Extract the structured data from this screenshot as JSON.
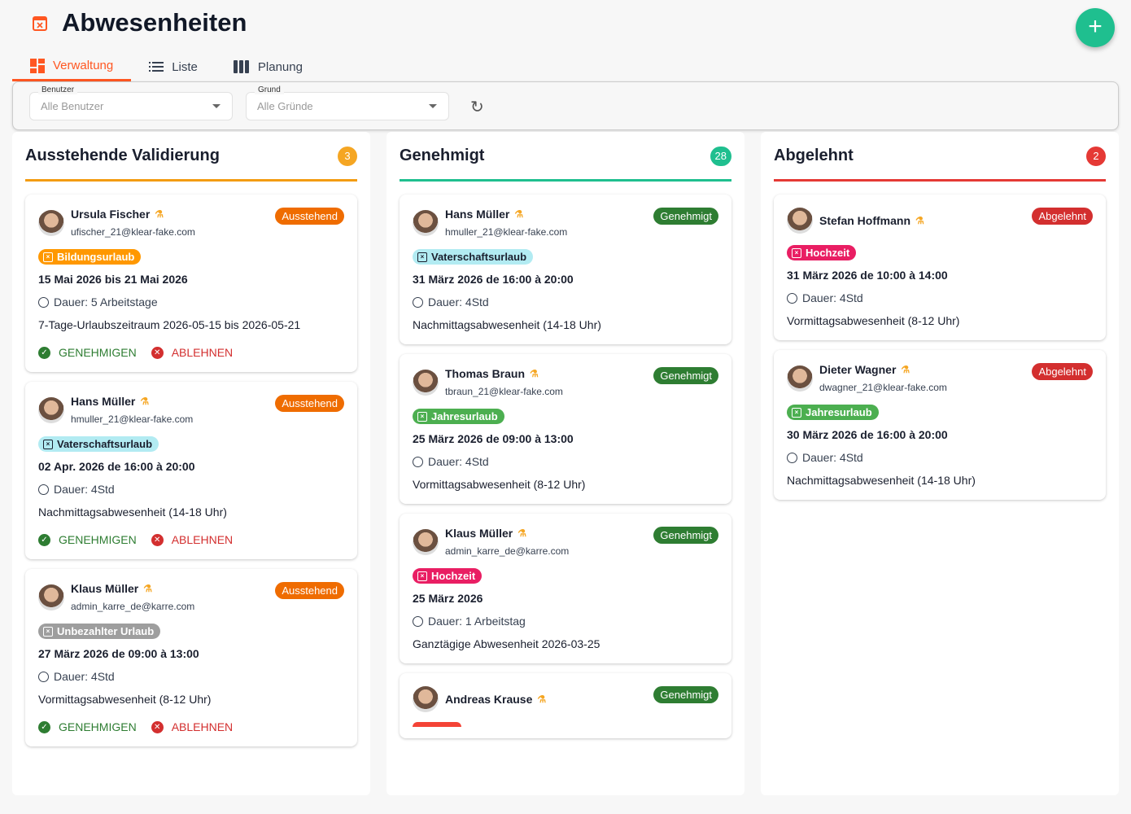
{
  "header": {
    "title": "Abwesenheiten",
    "icon": "calendar-x-icon",
    "add_button": "+"
  },
  "tabs": [
    {
      "label": "Verwaltung",
      "icon": "dashboard-icon",
      "active": true
    },
    {
      "label": "Liste",
      "icon": "list-icon"
    },
    {
      "label": "Planung",
      "icon": "columns-icon"
    }
  ],
  "filters": {
    "user_label": "Benutzer",
    "user_value": "Alle Benutzer",
    "reason_label": "Grund",
    "reason_value": "Alle Gründe",
    "refresh": "↻"
  },
  "actions": {
    "approve": "GENEHMIGEN",
    "reject": "ABLEHNEN"
  },
  "colors": {
    "pending": "#f59e0b",
    "approved": "#1fbf8f",
    "rejected": "#e53935"
  },
  "columns": [
    {
      "title": "Ausstehende Validierung",
      "count": "3",
      "color": "#f39c12",
      "count_color": "#f5a623",
      "status_color": "#ef6c00",
      "show_actions": true,
      "cards": [
        {
          "name": "Ursula Fischer",
          "email": "ufischer_21@klear-fake.com",
          "status": "Ausstehend",
          "category": "Bildungsurlaub",
          "cat_bg": "#ff9800",
          "cat_fg": "#fff",
          "date": "15 Mai 2026 bis 21 Mai 2026",
          "duration": "Dauer: 5 Arbeitstage",
          "description": "7-Tage-Urlaubszeitraum 2026-05-15 bis 2026-05-21"
        },
        {
          "name": "Hans Müller",
          "email": "hmuller_21@klear-fake.com",
          "status": "Ausstehend",
          "category": "Vaterschaftsurlaub",
          "cat_bg": "#b2ebf2",
          "cat_fg": "#1a1f2e",
          "date": "02 Apr. 2026 de 16:00 à 20:00",
          "duration": "Dauer: 4Std",
          "description": "Nachmittagsabwesenheit (14-18 Uhr)"
        },
        {
          "name": "Klaus Müller",
          "email": "admin_karre_de@karre.com",
          "status": "Ausstehend",
          "category": "Unbezahlter Urlaub",
          "cat_bg": "#9e9e9e",
          "cat_fg": "#fff",
          "date": "27 März 2026 de 09:00 à 13:00",
          "duration": "Dauer: 4Std",
          "description": "Vormittagsabwesenheit (8-12 Uhr)"
        }
      ]
    },
    {
      "title": "Genehmigt",
      "count": "28",
      "color": "#1fbf8f",
      "count_color": "#1fbf8f",
      "status_color": "#2e7d32",
      "show_actions": false,
      "cards": [
        {
          "name": "Hans Müller",
          "email": "hmuller_21@klear-fake.com",
          "status": "Genehmigt",
          "category": "Vaterschaftsurlaub",
          "cat_bg": "#b2ebf2",
          "cat_fg": "#1a1f2e",
          "date": "31 März 2026 de 16:00 à 20:00",
          "duration": "Dauer: 4Std",
          "description": "Nachmittagsabwesenheit (14-18 Uhr)"
        },
        {
          "name": "Thomas Braun",
          "email": "tbraun_21@klear-fake.com",
          "status": "Genehmigt",
          "category": "Jahresurlaub",
          "cat_bg": "#4caf50",
          "cat_fg": "#fff",
          "date": "25 März 2026 de 09:00 à 13:00",
          "duration": "Dauer: 4Std",
          "description": "Vormittagsabwesenheit (8-12 Uhr)"
        },
        {
          "name": "Klaus Müller",
          "email": "admin_karre_de@karre.com",
          "status": "Genehmigt",
          "category": "Hochzeit",
          "cat_bg": "#e91e63",
          "cat_fg": "#fff",
          "date": "25 März 2026",
          "duration": "Dauer: 1 Arbeitstag",
          "description": "Ganztägige Abwesenheit 2026-03-25"
        },
        {
          "name": "Andreas Krause",
          "status": "Genehmigt",
          "cat_bg": "#f44336",
          "partial": true
        }
      ]
    },
    {
      "title": "Abgelehnt",
      "count": "2",
      "color": "#e53935",
      "count_color": "#e53935",
      "status_color": "#d32f2f",
      "show_actions": false,
      "cards": [
        {
          "name": "Stefan Hoffmann",
          "status": "Abgelehnt",
          "category": "Hochzeit",
          "cat_bg": "#e91e63",
          "cat_fg": "#fff",
          "date": "31 März 2026 de 10:00 à 14:00",
          "duration": "Dauer: 4Std",
          "description": "Vormittagsabwesenheit (8-12 Uhr)"
        },
        {
          "name": "Dieter Wagner",
          "email": "dwagner_21@klear-fake.com",
          "status": "Abgelehnt",
          "category": "Jahresurlaub",
          "cat_bg": "#4caf50",
          "cat_fg": "#fff",
          "date": "30 März 2026 de 16:00 à 20:00",
          "duration": "Dauer: 4Std",
          "description": "Nachmittagsabwesenheit (14-18 Uhr)"
        }
      ]
    }
  ]
}
